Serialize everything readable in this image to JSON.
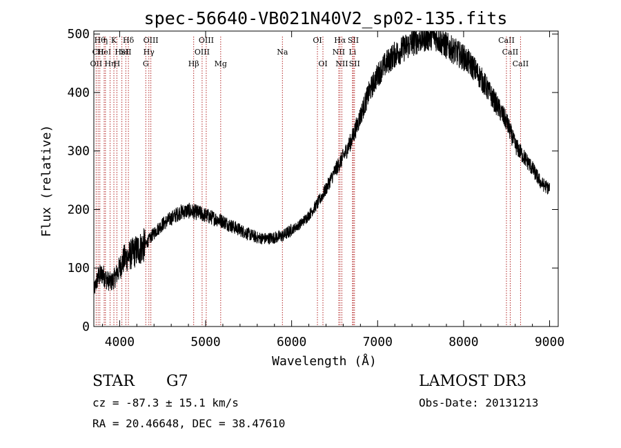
{
  "chart_data": {
    "type": "line",
    "title": "spec-56640-VB021N40V2_sp02-135.fits",
    "xlabel": "Wavelength (Å)",
    "ylabel": "Flux (relative)",
    "xlim": [
      3700,
      9100
    ],
    "ylim": [
      0,
      505
    ],
    "xticks": [
      4000,
      5000,
      6000,
      7000,
      8000,
      9000
    ],
    "yticks": [
      0,
      100,
      200,
      300,
      400,
      500
    ],
    "line_color": "#000000",
    "marker_color": "#b22222",
    "series": [
      {
        "name": "flux",
        "x": [
          3700,
          3750,
          3800,
          3850,
          3900,
          3950,
          4000,
          4050,
          4100,
          4150,
          4200,
          4250,
          4300,
          4350,
          4400,
          4500,
          4600,
          4700,
          4800,
          4900,
          5000,
          5100,
          5200,
          5300,
          5400,
          5500,
          5600,
          5700,
          5800,
          5900,
          6000,
          6100,
          6200,
          6300,
          6400,
          6500,
          6600,
          6700,
          6750,
          6800,
          6900,
          7000,
          7100,
          7200,
          7300,
          7400,
          7500,
          7600,
          7650,
          7700,
          7800,
          7900,
          8000,
          8100,
          8200,
          8300,
          8400,
          8500,
          8550,
          8600,
          8700,
          8800,
          8900,
          9000
        ],
        "y": [
          60,
          85,
          90,
          80,
          75,
          85,
          100,
          115,
          120,
          125,
          130,
          135,
          140,
          150,
          160,
          175,
          185,
          195,
          198,
          195,
          190,
          185,
          180,
          172,
          165,
          158,
          152,
          150,
          152,
          155,
          165,
          175,
          190,
          210,
          235,
          265,
          290,
          320,
          340,
          360,
          400,
          430,
          450,
          465,
          475,
          485,
          492,
          495,
          498,
          492,
          480,
          470,
          460,
          445,
          425,
          400,
          375,
          350,
          330,
          310,
          290,
          270,
          245,
          235
        ]
      }
    ],
    "line_markers": [
      {
        "wavelength": 3727,
        "row": 2,
        "label": "OII"
      },
      {
        "wavelength": 3750,
        "row": 1,
        "label": "CII"
      },
      {
        "wavelength": 3770,
        "row": 0,
        "label": "Hθ"
      },
      {
        "wavelength": 3820,
        "row": 1,
        "label": "HeI"
      },
      {
        "wavelength": 3835,
        "row": 0,
        "label": "η"
      },
      {
        "wavelength": 3889,
        "row": 2,
        "label": "Hη"
      },
      {
        "wavelength": 3933,
        "row": 0,
        "label": "K"
      },
      {
        "wavelength": 3968,
        "row": 2,
        "label": "H"
      },
      {
        "wavelength": 4026,
        "row": 1,
        "label": "HeI"
      },
      {
        "wavelength": 4072,
        "row": 1,
        "label": "SII"
      },
      {
        "wavelength": 4102,
        "row": 0,
        "label": "Hδ"
      },
      {
        "wavelength": 4304,
        "row": 2,
        "label": "G"
      },
      {
        "wavelength": 4340,
        "row": 1,
        "label": "Hγ"
      },
      {
        "wavelength": 4363,
        "row": 0,
        "label": "OIII"
      },
      {
        "wavelength": 4861,
        "row": 2,
        "label": "Hβ"
      },
      {
        "wavelength": 4959,
        "row": 1,
        "label": "OIII"
      },
      {
        "wavelength": 5007,
        "row": 0,
        "label": "OIII"
      },
      {
        "wavelength": 5175,
        "row": 2,
        "label": "Mg"
      },
      {
        "wavelength": 5893,
        "row": 1,
        "label": "Na"
      },
      {
        "wavelength": 6300,
        "row": 0,
        "label": "OI"
      },
      {
        "wavelength": 6364,
        "row": 2,
        "label": "OI"
      },
      {
        "wavelength": 6548,
        "row": 1,
        "label": "NII"
      },
      {
        "wavelength": 6563,
        "row": 0,
        "label": "Hα"
      },
      {
        "wavelength": 6584,
        "row": 2,
        "label": "NII"
      },
      {
        "wavelength": 6708,
        "row": 1,
        "label": "Li"
      },
      {
        "wavelength": 6717,
        "row": 0,
        "label": "SII"
      },
      {
        "wavelength": 6731,
        "row": 2,
        "label": "SII"
      },
      {
        "wavelength": 8498,
        "row": 0,
        "label": "CaII"
      },
      {
        "wavelength": 8542,
        "row": 1,
        "label": "CaII"
      },
      {
        "wavelength": 8662,
        "row": 2,
        "label": "CaII"
      }
    ]
  },
  "info": {
    "class": "STAR",
    "subclass": "G7",
    "survey": "LAMOST DR3",
    "cz": "cz = -87.3 ± 15.1 km/s",
    "obs_date": "Obs-Date: 20131213",
    "coords": "RA =  20.46648, DEC =  38.47610"
  }
}
